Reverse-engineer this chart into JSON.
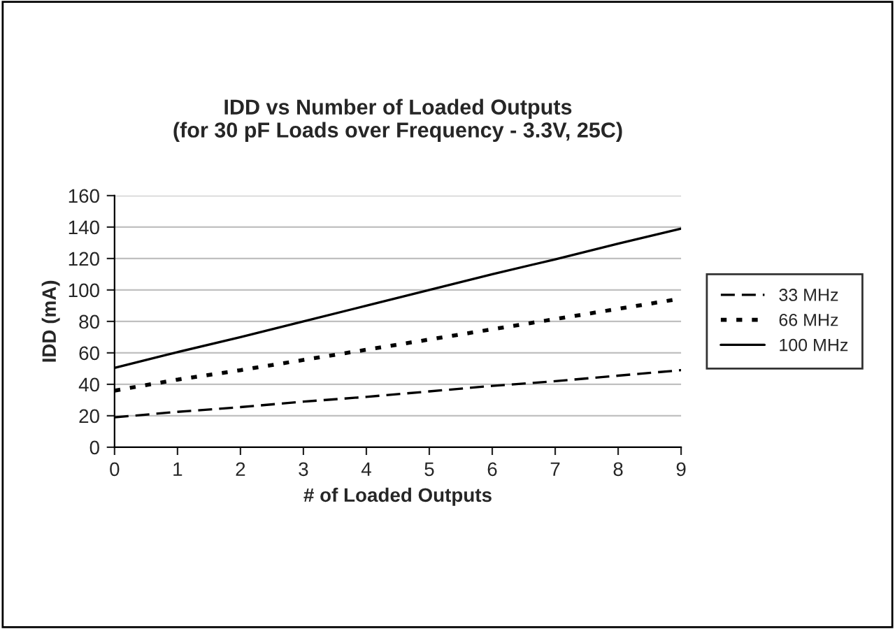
{
  "chart_data": {
    "type": "line",
    "title": "IDD vs Number of Loaded Outputs\n(for 30 pF Loads over Frequency - 3.3V, 25C)",
    "xlabel": "# of Loaded Outputs",
    "ylabel": "IDD (mA)",
    "x": [
      0,
      1,
      2,
      3,
      4,
      5,
      6,
      7,
      8,
      9
    ],
    "series": [
      {
        "name": "33 MHz",
        "color": "#000000",
        "line_style": "dashed",
        "values": [
          19,
          22.5,
          25.5,
          29,
          32,
          35.5,
          39,
          42,
          45.5,
          49
        ]
      },
      {
        "name": "66 MHz",
        "color": "#000000",
        "line_style": "dotted",
        "values": [
          36,
          43,
          49,
          55.5,
          62,
          68.5,
          75,
          81.5,
          88,
          94.5
        ]
      },
      {
        "name": "100 MHz",
        "color": "#000000",
        "line_style": "solid",
        "values": [
          50.5,
          60.5,
          70,
          80,
          90,
          100,
          110,
          119.5,
          129.5,
          139
        ]
      }
    ],
    "xlim": [
      0,
      9
    ],
    "xticks": [
      0,
      1,
      2,
      3,
      4,
      5,
      6,
      7,
      8,
      9
    ],
    "ylim": [
      0,
      160
    ],
    "yticks": [
      0,
      20,
      40,
      60,
      80,
      100,
      120,
      140,
      160
    ],
    "grid": "y",
    "legend": "right",
    "marker": "none"
  }
}
